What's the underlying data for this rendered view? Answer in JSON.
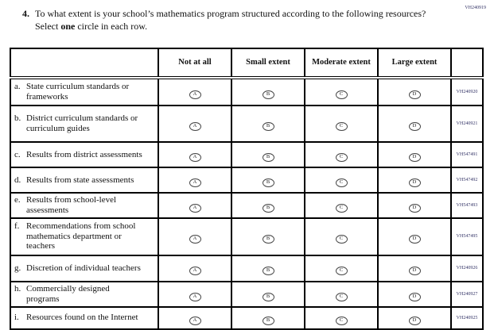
{
  "page_code_top": "VH240919",
  "question": {
    "number": "4.",
    "text_before_bold": "To what extent is your school’s mathematics program structured according to the following resources? Select ",
    "bold_word": "one",
    "text_after_bold": " circle in each row."
  },
  "table": {
    "columns": [
      "Not at all",
      "Small extent",
      "Moderate extent",
      "Large extent"
    ],
    "option_letters": [
      "A",
      "B",
      "C",
      "D"
    ],
    "rows": [
      {
        "letter": "a.",
        "label": "State curriculum standards or frameworks",
        "code": "VH240920"
      },
      {
        "letter": "b.",
        "label": "District curriculum standards or curriculum guides",
        "code": "VH240921"
      },
      {
        "letter": "c.",
        "label": "Results from district assessments",
        "code": "VH547491"
      },
      {
        "letter": "d.",
        "label": "Results from state assessments",
        "code": "VH547492"
      },
      {
        "letter": "e.",
        "label": "Results from school-level assessments",
        "code": "VH547493"
      },
      {
        "letter": "f.",
        "label": "Recommendations from school mathematics department or teachers",
        "code": "VH547495"
      },
      {
        "letter": "g.",
        "label": "Discretion of individual teachers",
        "code": "VH240926"
      },
      {
        "letter": "h.",
        "label": "Commercially designed programs",
        "code": "VH240927"
      },
      {
        "letter": "i.",
        "label": "Resources found on the Internet",
        "code": "VH240925"
      }
    ]
  },
  "colors": {
    "code_text": "#333366",
    "border": "#000000",
    "background": "#ffffff"
  }
}
